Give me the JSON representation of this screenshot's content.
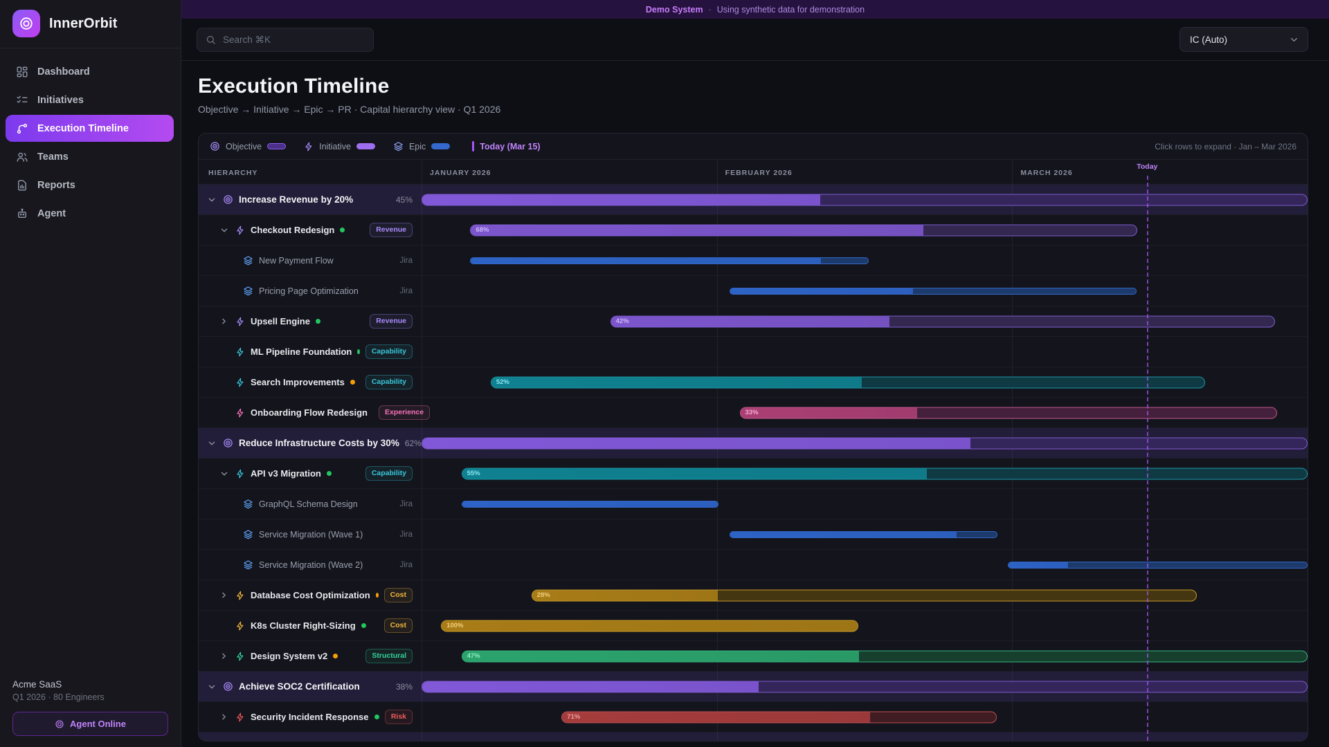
{
  "banner": {
    "title": "Demo System",
    "separator": "·",
    "subtitle": "Using synthetic data for demonstration"
  },
  "sidebar": {
    "brand": "InnerOrbit",
    "items": [
      {
        "label": "Dashboard",
        "icon": "dashboard",
        "active": false
      },
      {
        "label": "Initiatives",
        "icon": "initiatives",
        "active": false
      },
      {
        "label": "Execution Timeline",
        "icon": "timeline",
        "active": true
      },
      {
        "label": "Teams",
        "icon": "teams",
        "active": false
      },
      {
        "label": "Reports",
        "icon": "reports",
        "active": false
      },
      {
        "label": "Agent",
        "icon": "agent",
        "active": false
      }
    ],
    "footer": {
      "org": "Acme SaaS",
      "meta": "Q1 2026 · 80 Engineers",
      "agent_button": "Agent Online"
    }
  },
  "topbar": {
    "search_placeholder": "Search ⌘K",
    "profile_select": "IC (Auto)"
  },
  "page": {
    "title": "Execution Timeline",
    "breadcrumb": "Objective → Initiative → Epic → PR · Capital hierarchy view · Q1 2026"
  },
  "timeline": {
    "legend": [
      {
        "label": "Objective",
        "icon": "target"
      },
      {
        "label": "Initiative",
        "icon": "zap"
      },
      {
        "label": "Epic",
        "icon": "layers"
      }
    ],
    "today_legend": "Today (Mar 15)",
    "hint": "Click rows to expand · Jan – Mar 2026",
    "columns": {
      "hierarchy": "HIERARCHY",
      "months": [
        "JANUARY 2026",
        "FEBRUARY 2026",
        "MARCH 2026"
      ]
    },
    "today_marker": {
      "label": "Today",
      "position_pct": 81.9,
      "color": "#a855f7"
    },
    "dot_colors": {
      "green": "#22c55e",
      "orange": "#f59e0b"
    },
    "categories": {
      "objective": {
        "accent": "#a78bfa",
        "fill": "#8158d8",
        "track": "#34265a",
        "border": "#7e5bd0",
        "text": "#cdb9f5"
      },
      "revenue": {
        "accent": "#a78bfa",
        "fill": "#7c55cc",
        "track": "#33284f",
        "border": "#7d5ccf",
        "text": "#cdb9f5"
      },
      "capability": {
        "accent": "#38c7d8",
        "fill": "#0f8190",
        "track": "#0f3a44",
        "border": "#1b97a6",
        "text": "#8ae6f2"
      },
      "experience": {
        "accent": "#f472b6",
        "fill": "#ab3f74",
        "track": "#44203c",
        "border": "#c2598c",
        "text": "#f7abd0"
      },
      "cost": {
        "accent": "#f0b43c",
        "fill": "#a87c17",
        "track": "#443611",
        "border": "#c79b27",
        "text": "#f3d07c"
      },
      "structural": {
        "accent": "#34d399",
        "fill": "#2ba36c",
        "track": "#163f2e",
        "border": "#36b57e",
        "text": "#90e9c2"
      },
      "risk": {
        "accent": "#ef5a5a",
        "fill": "#a53c3c",
        "track": "#3f1d23",
        "border": "#bf5050",
        "text": "#f09f9f"
      },
      "epic": {
        "accent": "#60a5fa",
        "fill": "#2d63c6",
        "track": "#1d3a6c",
        "border": "#3366c5",
        "text": "#9ec1f7"
      }
    },
    "rows": [
      {
        "type": "objective",
        "label": "Increase Revenue by 20%",
        "chevron": "down",
        "right_text": "45%",
        "bar": {
          "start": 0,
          "end": 100,
          "progress": 45,
          "cat": "objective"
        }
      },
      {
        "type": "initiative",
        "label": "Checkout Redesign",
        "chevron": "down",
        "dot": "green",
        "badge": "Revenue",
        "cat": "revenue",
        "bar": {
          "start": 5.5,
          "end": 80.8,
          "progress": 68,
          "label": "68%",
          "cat": "revenue"
        }
      },
      {
        "type": "epic",
        "label": "New Payment Flow",
        "right_text": "Jira",
        "bar": {
          "start": 5.5,
          "end": 50.5,
          "progress": 88,
          "cat": "epic"
        }
      },
      {
        "type": "epic",
        "label": "Pricing Page Optimization",
        "right_text": "Jira",
        "bar": {
          "start": 34.8,
          "end": 80.7,
          "progress": 45,
          "cat": "epic"
        }
      },
      {
        "type": "initiative",
        "label": "Upsell Engine",
        "chevron": "right",
        "dot": "green",
        "badge": "Revenue",
        "cat": "revenue",
        "bar": {
          "start": 21.3,
          "end": 96.3,
          "progress": 42,
          "label": "42%",
          "cat": "revenue"
        }
      },
      {
        "type": "initiative",
        "label": "ML Pipeline Foundation",
        "dot": "green",
        "badge": "Capability",
        "cat": "capability"
      },
      {
        "type": "initiative",
        "label": "Search Improvements",
        "dot": "orange",
        "badge": "Capability",
        "cat": "capability",
        "bar": {
          "start": 7.8,
          "end": 88.4,
          "progress": 52,
          "label": "52%",
          "cat": "capability"
        }
      },
      {
        "type": "initiative",
        "label": "Onboarding Flow Redesign",
        "dot": "green",
        "badge": "Experience",
        "cat": "experience",
        "bar": {
          "start": 35.9,
          "end": 96.6,
          "progress": 33,
          "label": "33%",
          "cat": "experience"
        }
      },
      {
        "type": "objective",
        "label": "Reduce Infrastructure Costs by 30%",
        "chevron": "down",
        "right_text": "62%",
        "bar": {
          "start": 0,
          "end": 100,
          "progress": 62,
          "cat": "objective"
        }
      },
      {
        "type": "initiative",
        "label": "API v3 Migration",
        "chevron": "down",
        "dot": "green",
        "badge": "Capability",
        "cat": "capability",
        "bar": {
          "start": 4.5,
          "end": 100,
          "progress": 55,
          "label": "55%",
          "cat": "capability"
        }
      },
      {
        "type": "epic",
        "label": "GraphQL Schema Design",
        "right_text": "Jira",
        "bar": {
          "start": 4.5,
          "end": 33.5,
          "progress": 100,
          "cat": "epic"
        }
      },
      {
        "type": "epic",
        "label": "Service Migration (Wave 1)",
        "right_text": "Jira",
        "bar": {
          "start": 34.8,
          "end": 65,
          "progress": 85,
          "cat": "epic"
        }
      },
      {
        "type": "epic",
        "label": "Service Migration (Wave 2)",
        "right_text": "Jira",
        "bar": {
          "start": 66.2,
          "end": 100,
          "progress": 20,
          "cat": "epic"
        }
      },
      {
        "type": "initiative",
        "label": "Database Cost Optimization",
        "chevron": "right",
        "dot": "orange",
        "badge": "Cost",
        "cat": "cost",
        "bar": {
          "start": 12.4,
          "end": 87.5,
          "progress": 28,
          "label": "28%",
          "cat": "cost"
        }
      },
      {
        "type": "initiative",
        "label": "K8s Cluster Right-Sizing",
        "dot": "green",
        "badge": "Cost",
        "cat": "cost",
        "bar": {
          "start": 2.2,
          "end": 49.3,
          "progress": 100,
          "label": "100%",
          "cat": "cost"
        }
      },
      {
        "type": "initiative",
        "label": "Design System v2",
        "chevron": "right",
        "dot": "orange",
        "badge": "Structural",
        "cat": "structural",
        "bar": {
          "start": 4.5,
          "end": 100,
          "progress": 47,
          "label": "47%",
          "cat": "structural"
        }
      },
      {
        "type": "objective",
        "label": "Achieve SOC2 Certification",
        "chevron": "down",
        "right_text": "38%",
        "bar": {
          "start": 0,
          "end": 100,
          "progress": 38,
          "cat": "objective"
        }
      },
      {
        "type": "initiative",
        "label": "Security Incident Response",
        "chevron": "right",
        "dot": "green",
        "badge": "Risk",
        "cat": "risk",
        "bar": {
          "start": 15.8,
          "end": 64.9,
          "progress": 71,
          "label": "71%",
          "cat": "risk"
        }
      },
      {
        "type": "partial"
      }
    ]
  }
}
